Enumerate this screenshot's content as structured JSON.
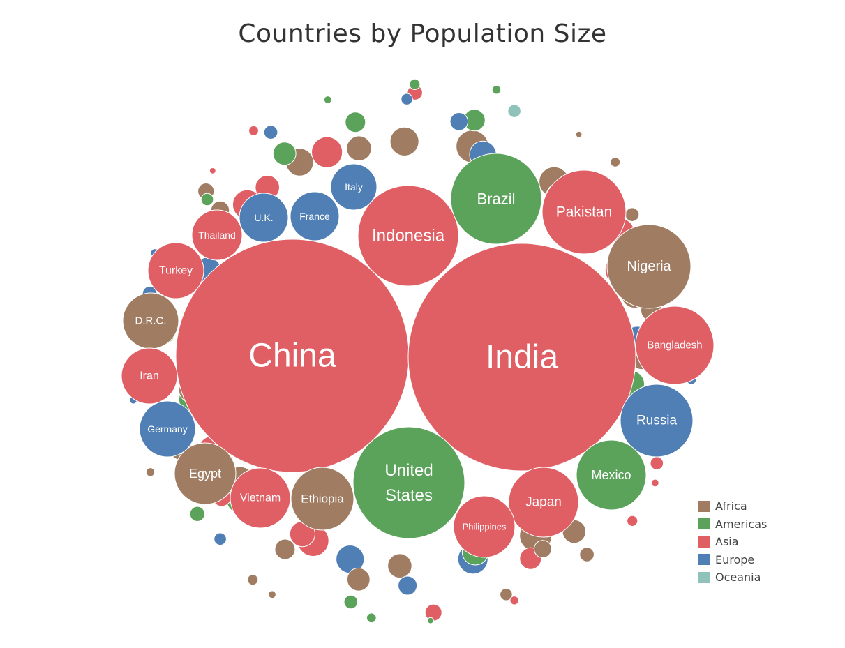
{
  "chart_data": {
    "type": "bubble",
    "title": "Countries by Population Size",
    "regions": [
      {
        "name": "Africa",
        "color": "#a07d62"
      },
      {
        "name": "Americas",
        "color": "#5ba25b"
      },
      {
        "name": "Asia",
        "color": "#e05f65"
      },
      {
        "name": "Europe",
        "color": "#4f7fb4"
      },
      {
        "name": "Oceania",
        "color": "#8fc2bb"
      }
    ],
    "labeled_countries": [
      {
        "name": "China",
        "region": "Asia",
        "population_millions": 1390
      },
      {
        "name": "India",
        "region": "Asia",
        "population_millions": 1350
      },
      {
        "name": "United States",
        "label_lines": [
          "United",
          "States"
        ],
        "region": "Americas",
        "population_millions": 327
      },
      {
        "name": "Indonesia",
        "region": "Asia",
        "population_millions": 267
      },
      {
        "name": "Brazil",
        "region": "Americas",
        "population_millions": 209
      },
      {
        "name": "Pakistan",
        "region": "Asia",
        "population_millions": 212
      },
      {
        "name": "Nigeria",
        "region": "Africa",
        "population_millions": 196
      },
      {
        "name": "Bangladesh",
        "region": "Asia",
        "population_millions": 161
      },
      {
        "name": "Russia",
        "region": "Europe",
        "population_millions": 144
      },
      {
        "name": "Mexico",
        "region": "Americas",
        "population_millions": 126
      },
      {
        "name": "Japan",
        "region": "Asia",
        "population_millions": 127
      },
      {
        "name": "Ethiopia",
        "region": "Africa",
        "population_millions": 109
      },
      {
        "name": "Philippines",
        "region": "Asia",
        "population_millions": 107
      },
      {
        "name": "Egypt",
        "region": "Africa",
        "population_millions": 98
      },
      {
        "name": "Vietnam",
        "region": "Asia",
        "population_millions": 96
      },
      {
        "name": "D.R.C.",
        "region": "Africa",
        "population_millions": 84
      },
      {
        "name": "Germany",
        "region": "Europe",
        "population_millions": 83
      },
      {
        "name": "Iran",
        "region": "Asia",
        "population_millions": 82
      },
      {
        "name": "Turkey",
        "region": "Asia",
        "population_millions": 82
      },
      {
        "name": "Thailand",
        "region": "Asia",
        "population_millions": 69
      },
      {
        "name": "France",
        "region": "Europe",
        "population_millions": 67
      },
      {
        "name": "U.K.",
        "region": "Europe",
        "population_millions": 66
      },
      {
        "name": "Italy",
        "region": "Europe",
        "population_millions": 60
      }
    ],
    "unlabeled_countries_by_region": {
      "Africa": [
        58,
        57,
        56,
        55,
        54,
        50,
        48,
        44,
        42,
        41,
        36,
        33,
        32,
        31,
        29,
        28,
        26,
        24,
        22,
        20,
        18,
        16,
        14,
        12,
        11,
        10,
        8,
        6,
        5,
        4,
        3,
        2
      ],
      "Americas": [
        49,
        45,
        43,
        39,
        37,
        32,
        29,
        28,
        25,
        22,
        18,
        16,
        12,
        10,
        8,
        6,
        5,
        4,
        3,
        2
      ],
      "Asia": [
        54,
        52,
        51,
        46,
        43,
        38,
        34,
        33,
        31,
        29,
        28,
        25,
        21,
        20,
        18,
        15,
        12,
        9,
        8,
        6,
        5,
        4,
        3,
        2
      ],
      "Europe": [
        48,
        46,
        42,
        38,
        37,
        19,
        17,
        11,
        10,
        9,
        8,
        7,
        6,
        5,
        4,
        3,
        2
      ],
      "Oceania": [
        25,
        9,
        4
      ]
    }
  }
}
